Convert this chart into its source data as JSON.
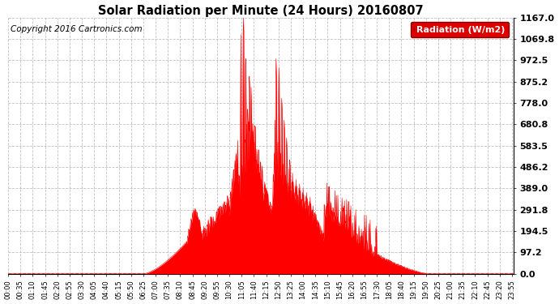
{
  "title": "Solar Radiation per Minute (24 Hours) 20160807",
  "copyright_text": "Copyright 2016 Cartronics.com",
  "legend_label": "Radiation (W/m2)",
  "y_ticks": [
    0.0,
    97.2,
    194.5,
    291.8,
    389.0,
    486.2,
    583.5,
    680.8,
    778.0,
    875.2,
    972.5,
    1069.8,
    1167.0
  ],
  "y_max": 1167.0,
  "bar_color": "#ff0000",
  "background_color": "#ffffff",
  "grid_color": "#b0b0b0",
  "legend_bg": "#dd0000",
  "legend_text_color": "#ffffff",
  "n_points": 1440,
  "sunrise_min": 385,
  "sunset_min": 1200,
  "tick_interval": 35
}
